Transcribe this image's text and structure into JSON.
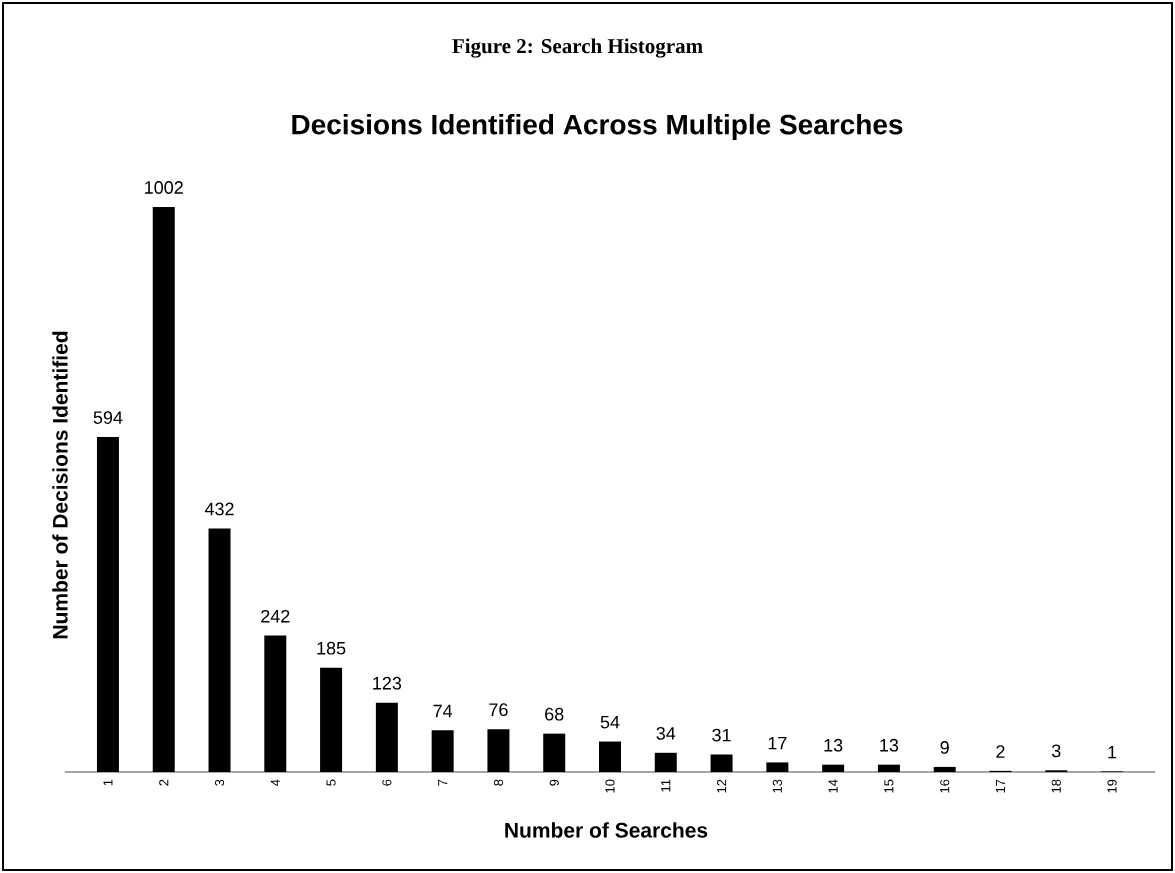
{
  "chart_data": {
    "type": "bar",
    "title": "Figure 2: Search Histogram",
    "subtitle": "Decisions Identified Across Multiple Searches",
    "xlabel": "Number of Searches",
    "ylabel": "Number of Decisions Identified",
    "categories": [
      "1",
      "2",
      "3",
      "4",
      "5",
      "6",
      "7",
      "8",
      "9",
      "10",
      "11",
      "12",
      "13",
      "14",
      "15",
      "16",
      "17",
      "18",
      "19"
    ],
    "values": [
      594,
      1002,
      432,
      242,
      185,
      123,
      74,
      76,
      68,
      54,
      34,
      31,
      17,
      13,
      13,
      9,
      2,
      3,
      1
    ],
    "color": "#000000",
    "data_labels": true,
    "tick_labels": "x"
  }
}
